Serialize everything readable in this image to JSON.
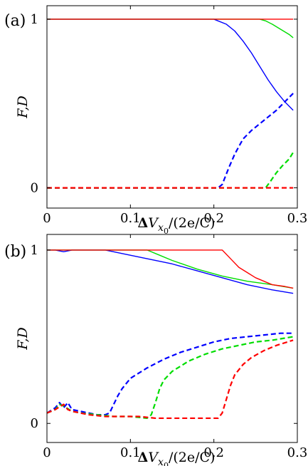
{
  "chart_data": [
    {
      "type": "line",
      "panel_label": "(a)",
      "xlabel": "ΔV_x0/(2e/C)",
      "ylabel": "F,D",
      "xlim": [
        0,
        0.3
      ],
      "ylim": [
        -0.12,
        1.08
      ],
      "x_ticks": [
        {
          "v": 0,
          "label": "0"
        },
        {
          "v": 0.1,
          "label": "0.1"
        },
        {
          "v": 0.2,
          "label": "0.2"
        },
        {
          "v": 0.3,
          "label": "0.3"
        }
      ],
      "y_ticks": [
        {
          "v": 0,
          "label": "0"
        },
        {
          "v": 1,
          "label": "1"
        }
      ],
      "series": [
        {
          "color": "#0000ff",
          "style": "solid",
          "points": [
            [
              0,
              1
            ],
            [
              0.2,
              1
            ],
            [
              0.205,
              0.99
            ],
            [
              0.215,
              0.97
            ],
            [
              0.225,
              0.93
            ],
            [
              0.235,
              0.87
            ],
            [
              0.245,
              0.8
            ],
            [
              0.255,
              0.72
            ],
            [
              0.265,
              0.64
            ],
            [
              0.275,
              0.57
            ],
            [
              0.285,
              0.51
            ],
            [
              0.295,
              0.46
            ]
          ]
        },
        {
          "color": "#00dd00",
          "style": "solid",
          "points": [
            [
              0,
              1
            ],
            [
              0.255,
              1
            ],
            [
              0.262,
              0.99
            ],
            [
              0.27,
              0.97
            ],
            [
              0.28,
              0.94
            ],
            [
              0.29,
              0.91
            ],
            [
              0.295,
              0.89
            ]
          ]
        },
        {
          "color": "#ff0000",
          "style": "solid",
          "points": [
            [
              0,
              1
            ],
            [
              0.295,
              1
            ]
          ]
        },
        {
          "color": "#0000ff",
          "style": "dashed",
          "points": [
            [
              0,
              0
            ],
            [
              0.205,
              0
            ],
            [
              0.21,
              0.02
            ],
            [
              0.218,
              0.12
            ],
            [
              0.225,
              0.2
            ],
            [
              0.235,
              0.29
            ],
            [
              0.245,
              0.34
            ],
            [
              0.255,
              0.38
            ],
            [
              0.265,
              0.42
            ],
            [
              0.275,
              0.46
            ],
            [
              0.285,
              0.51
            ],
            [
              0.295,
              0.56
            ]
          ]
        },
        {
          "color": "#00dd00",
          "style": "dashed",
          "points": [
            [
              0,
              0
            ],
            [
              0.262,
              0
            ],
            [
              0.268,
              0.04
            ],
            [
              0.275,
              0.09
            ],
            [
              0.282,
              0.13
            ],
            [
              0.29,
              0.17
            ],
            [
              0.295,
              0.21
            ]
          ]
        },
        {
          "color": "#ff0000",
          "style": "dashed",
          "points": [
            [
              0,
              0
            ],
            [
              0.295,
              0
            ]
          ]
        }
      ]
    },
    {
      "type": "line",
      "panel_label": "(b)",
      "xlabel": "ΔV_x0/(2e/C)",
      "ylabel": "F,D",
      "xlim": [
        0,
        0.3
      ],
      "ylim": [
        -0.11,
        1.09
      ],
      "x_ticks": [
        {
          "v": 0,
          "label": "0"
        },
        {
          "v": 0.1,
          "label": "0.1"
        },
        {
          "v": 0.2,
          "label": "0.2"
        },
        {
          "v": 0.3,
          "label": "0.3"
        }
      ],
      "y_ticks": [
        {
          "v": 0,
          "label": "0"
        },
        {
          "v": 1,
          "label": "1"
        }
      ],
      "series": [
        {
          "color": "#0000ff",
          "style": "solid",
          "points": [
            [
              0,
              1
            ],
            [
              0.01,
              1
            ],
            [
              0.02,
              0.99
            ],
            [
              0.03,
              1
            ],
            [
              0.05,
              1
            ],
            [
              0.07,
              1
            ],
            [
              0.09,
              0.98
            ],
            [
              0.12,
              0.95
            ],
            [
              0.15,
              0.92
            ],
            [
              0.18,
              0.88
            ],
            [
              0.21,
              0.84
            ],
            [
              0.24,
              0.8
            ],
            [
              0.27,
              0.77
            ],
            [
              0.295,
              0.75
            ]
          ]
        },
        {
          "color": "#00dd00",
          "style": "solid",
          "points": [
            [
              0,
              1
            ],
            [
              0.03,
              1
            ],
            [
              0.07,
              1
            ],
            [
              0.12,
              1
            ],
            [
              0.135,
              0.97
            ],
            [
              0.15,
              0.94
            ],
            [
              0.18,
              0.89
            ],
            [
              0.21,
              0.85
            ],
            [
              0.24,
              0.82
            ],
            [
              0.27,
              0.8
            ],
            [
              0.295,
              0.78
            ]
          ]
        },
        {
          "color": "#ff0000",
          "style": "solid",
          "points": [
            [
              0,
              1
            ],
            [
              0.21,
              1
            ],
            [
              0.22,
              0.95
            ],
            [
              0.23,
              0.9
            ],
            [
              0.24,
              0.87
            ],
            [
              0.25,
              0.84
            ],
            [
              0.26,
              0.82
            ],
            [
              0.27,
              0.8
            ],
            [
              0.285,
              0.79
            ],
            [
              0.295,
              0.78
            ]
          ]
        },
        {
          "color": "#0000ff",
          "style": "dashed",
          "points": [
            [
              0,
              0.06
            ],
            [
              0.01,
              0.09
            ],
            [
              0.015,
              0.12
            ],
            [
              0.02,
              0.09
            ],
            [
              0.025,
              0.12
            ],
            [
              0.03,
              0.08
            ],
            [
              0.04,
              0.07
            ],
            [
              0.05,
              0.06
            ],
            [
              0.06,
              0.05
            ],
            [
              0.07,
              0.05
            ],
            [
              0.075,
              0.06
            ],
            [
              0.08,
              0.11
            ],
            [
              0.085,
              0.16
            ],
            [
              0.09,
              0.2
            ],
            [
              0.1,
              0.26
            ],
            [
              0.12,
              0.32
            ],
            [
              0.14,
              0.37
            ],
            [
              0.16,
              0.41
            ],
            [
              0.18,
              0.44
            ],
            [
              0.2,
              0.47
            ],
            [
              0.22,
              0.49
            ],
            [
              0.24,
              0.5
            ],
            [
              0.26,
              0.51
            ],
            [
              0.28,
              0.52
            ],
            [
              0.295,
              0.52
            ]
          ]
        },
        {
          "color": "#00dd00",
          "style": "dashed",
          "points": [
            [
              0,
              0.06
            ],
            [
              0.01,
              0.08
            ],
            [
              0.015,
              0.11
            ],
            [
              0.02,
              0.1
            ],
            [
              0.03,
              0.07
            ],
            [
              0.04,
              0.06
            ],
            [
              0.06,
              0.05
            ],
            [
              0.08,
              0.04
            ],
            [
              0.1,
              0.04
            ],
            [
              0.12,
              0.03
            ],
            [
              0.125,
              0.05
            ],
            [
              0.13,
              0.12
            ],
            [
              0.135,
              0.2
            ],
            [
              0.14,
              0.25
            ],
            [
              0.15,
              0.3
            ],
            [
              0.17,
              0.36
            ],
            [
              0.19,
              0.4
            ],
            [
              0.21,
              0.43
            ],
            [
              0.23,
              0.45
            ],
            [
              0.25,
              0.47
            ],
            [
              0.27,
              0.48
            ],
            [
              0.295,
              0.5
            ]
          ]
        },
        {
          "color": "#ff0000",
          "style": "dashed",
          "points": [
            [
              0,
              0.06
            ],
            [
              0.01,
              0.08
            ],
            [
              0.02,
              0.11
            ],
            [
              0.025,
              0.08
            ],
            [
              0.03,
              0.07
            ],
            [
              0.05,
              0.05
            ],
            [
              0.07,
              0.04
            ],
            [
              0.09,
              0.04
            ],
            [
              0.11,
              0.04
            ],
            [
              0.13,
              0.03
            ],
            [
              0.15,
              0.03
            ],
            [
              0.17,
              0.03
            ],
            [
              0.19,
              0.03
            ],
            [
              0.205,
              0.03
            ],
            [
              0.21,
              0.06
            ],
            [
              0.215,
              0.14
            ],
            [
              0.22,
              0.22
            ],
            [
              0.225,
              0.28
            ],
            [
              0.235,
              0.34
            ],
            [
              0.245,
              0.38
            ],
            [
              0.26,
              0.42
            ],
            [
              0.275,
              0.45
            ],
            [
              0.295,
              0.48
            ]
          ]
        }
      ]
    }
  ]
}
